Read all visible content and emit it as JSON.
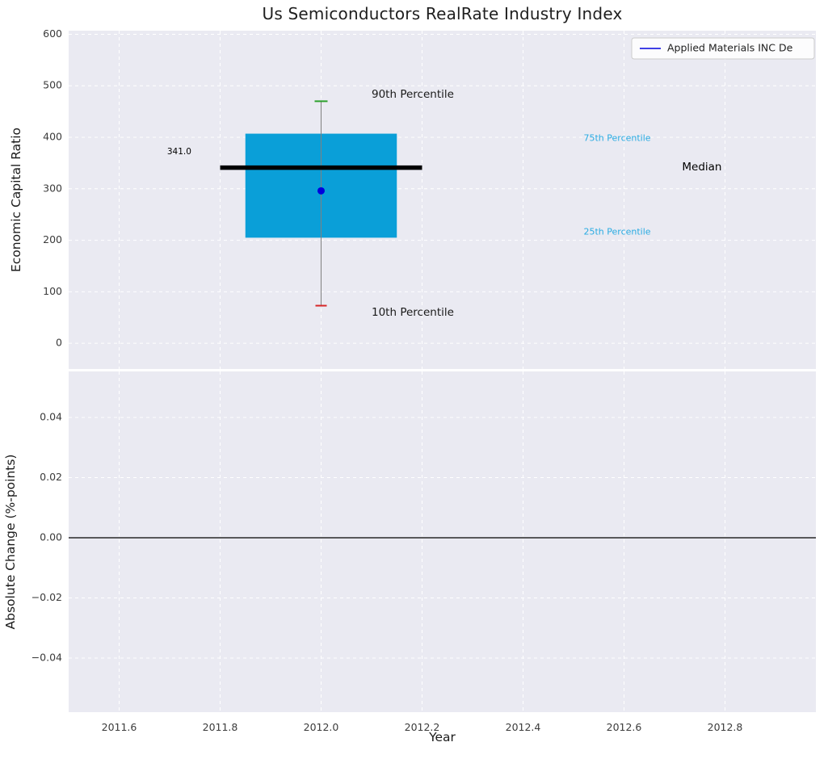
{
  "chart_data": {
    "type": "boxplot",
    "title": "Us Semiconductors RealRate Industry Index",
    "xlabel": "Year",
    "xlim": [
      2011.5,
      2012.98
    ],
    "xticks": [
      {
        "v": 2011.6,
        "label": "2011.6"
      },
      {
        "v": 2011.8,
        "label": "2011.8"
      },
      {
        "v": 2012.0,
        "label": "2012.0"
      },
      {
        "v": 2012.2,
        "label": "2012.2"
      },
      {
        "v": 2012.4,
        "label": "2012.4"
      },
      {
        "v": 2012.6,
        "label": "2012.6"
      },
      {
        "v": 2012.8,
        "label": "2012.8"
      }
    ],
    "background": "#eaeaf2",
    "grid": {
      "on": true,
      "color": "#ffffff",
      "style": "dashed"
    },
    "legend": {
      "label": "Applied Materials INC De",
      "line_color": "#0000dd",
      "position": "upper right"
    },
    "subplots": [
      {
        "ylabel": "Economic Capital Ratio",
        "ylim": [
          -50,
          607
        ],
        "yticks": [
          {
            "v": 0,
            "label": "0"
          },
          {
            "v": 100,
            "label": "100"
          },
          {
            "v": 200,
            "label": "200"
          },
          {
            "v": 300,
            "label": "300"
          },
          {
            "v": 400,
            "label": "400"
          },
          {
            "v": 500,
            "label": "500"
          },
          {
            "v": 600,
            "label": "600"
          }
        ],
        "series": {
          "name": "Applied Materials INC De",
          "x": 2012.0,
          "p10": 73,
          "p25": 205,
          "median": 341,
          "p75": 407,
          "p90": 470,
          "value": 296,
          "box_x_range": [
            2011.85,
            2012.15
          ],
          "median_x_range": [
            2011.8,
            2012.2
          ],
          "box_color": "#0a9fd8",
          "median_color": "#000000",
          "whisker_color": "#808080",
          "p90_cap_color": "#2ca02c",
          "p10_cap_color": "#d62728",
          "dot_color": "#0000dd"
        },
        "annotations": [
          {
            "name": "median-value-label",
            "text": "341.0",
            "x": 2011.695,
            "y": 372,
            "color": "#000000",
            "size": 10.5,
            "anchor": "start"
          },
          {
            "name": "p90-label",
            "text": "90th Percentile",
            "x": 2012.1,
            "y": 483,
            "color": "#1a1a1a",
            "size": 13.5,
            "anchor": "start"
          },
          {
            "name": "p10-label",
            "text": "10th Percentile",
            "x": 2012.1,
            "y": 60,
            "color": "#1a1a1a",
            "size": 13.5,
            "anchor": "start"
          },
          {
            "name": "p75-label",
            "text": "75th Percentile",
            "x": 2012.52,
            "y": 398,
            "color": "#29abe2",
            "size": 11,
            "anchor": "start"
          },
          {
            "name": "p25-label",
            "text": "25th Percentile",
            "x": 2012.52,
            "y": 216,
            "color": "#29abe2",
            "size": 11,
            "anchor": "start"
          },
          {
            "name": "median-label",
            "text": "Median",
            "x": 2012.715,
            "y": 342,
            "color": "#000000",
            "size": 13.5,
            "anchor": "start"
          }
        ]
      },
      {
        "ylabel": "Absolute Change (%-points)",
        "ylim": [
          -0.058,
          0.0553
        ],
        "yticks": [
          {
            "v": 0.04,
            "label": "0.04"
          },
          {
            "v": 0.02,
            "label": "0.02"
          },
          {
            "v": 0,
            "label": "0.00"
          },
          {
            "v": -0.02,
            "label": "−0.02"
          },
          {
            "v": -0.04,
            "label": "−0.04"
          }
        ],
        "zero_line": {
          "y": 0,
          "color": "#000000"
        }
      }
    ]
  }
}
